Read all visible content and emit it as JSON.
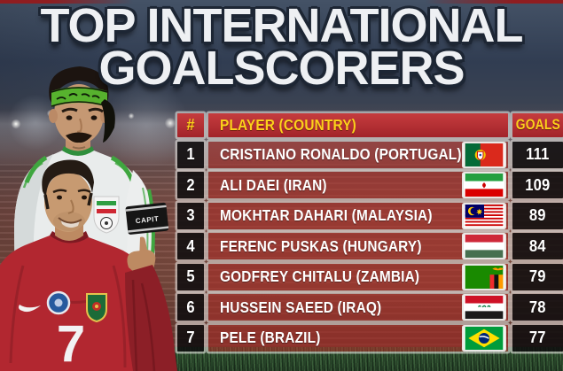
{
  "title": {
    "line1": "TOP INTERNATIONAL",
    "line2": "GOALSCORERS"
  },
  "table": {
    "headers": {
      "rank": "#",
      "player": "PLAYER (COUNTRY)",
      "goals": "GOALS"
    },
    "rows": [
      {
        "rank": "1",
        "player": "CRISTIANO RONALDO (PORTUGAL)",
        "goals": "111",
        "flag": "portugal"
      },
      {
        "rank": "2",
        "player": "ALI DAEI (IRAN)",
        "goals": "109",
        "flag": "iran"
      },
      {
        "rank": "3",
        "player": "MOKHTAR DAHARI (MALAYSIA)",
        "goals": "89",
        "flag": "malaysia"
      },
      {
        "rank": "4",
        "player": "FERENC PUSKAS (HUNGARY)",
        "goals": "84",
        "flag": "hungary"
      },
      {
        "rank": "5",
        "player": "GODFREY CHITALU (ZAMBIA)",
        "goals": "79",
        "flag": "zambia"
      },
      {
        "rank": "6",
        "player": "HUSSEIN SAEED (IRAQ)",
        "goals": "78",
        "flag": "iraq"
      },
      {
        "rank": "7",
        "player": "PELE (BRAZIL)",
        "goals": "77",
        "flag": "brazil"
      }
    ]
  },
  "photos": {
    "armband_text": "CAPIT",
    "front_player_number": "7"
  },
  "colors": {
    "header_red": "#b4292f",
    "header_text_yellow": "#fcd11b",
    "row_dark_cell": "#141314",
    "row_player_red": "#aa2d28",
    "table_gutter": "#dfddda",
    "title_text": "#eef0f3",
    "pitch_green": "#2c4a2a"
  },
  "chart_data": {
    "type": "table",
    "title": "TOP INTERNATIONAL GOALSCORERS",
    "columns": [
      "#",
      "PLAYER (COUNTRY)",
      "GOALS"
    ],
    "rows": [
      [
        1,
        "CRISTIANO RONALDO (PORTUGAL)",
        111
      ],
      [
        2,
        "ALI DAEI (IRAN)",
        109
      ],
      [
        3,
        "MOKHTAR DAHARI (MALAYSIA)",
        89
      ],
      [
        4,
        "FERENC PUSKAS (HUNGARY)",
        84
      ],
      [
        5,
        "GODFREY CHITALU (ZAMBIA)",
        79
      ],
      [
        6,
        "HUSSEIN SAEED (IRAQ)",
        78
      ],
      [
        7,
        "PELE (BRAZIL)",
        77
      ]
    ]
  }
}
